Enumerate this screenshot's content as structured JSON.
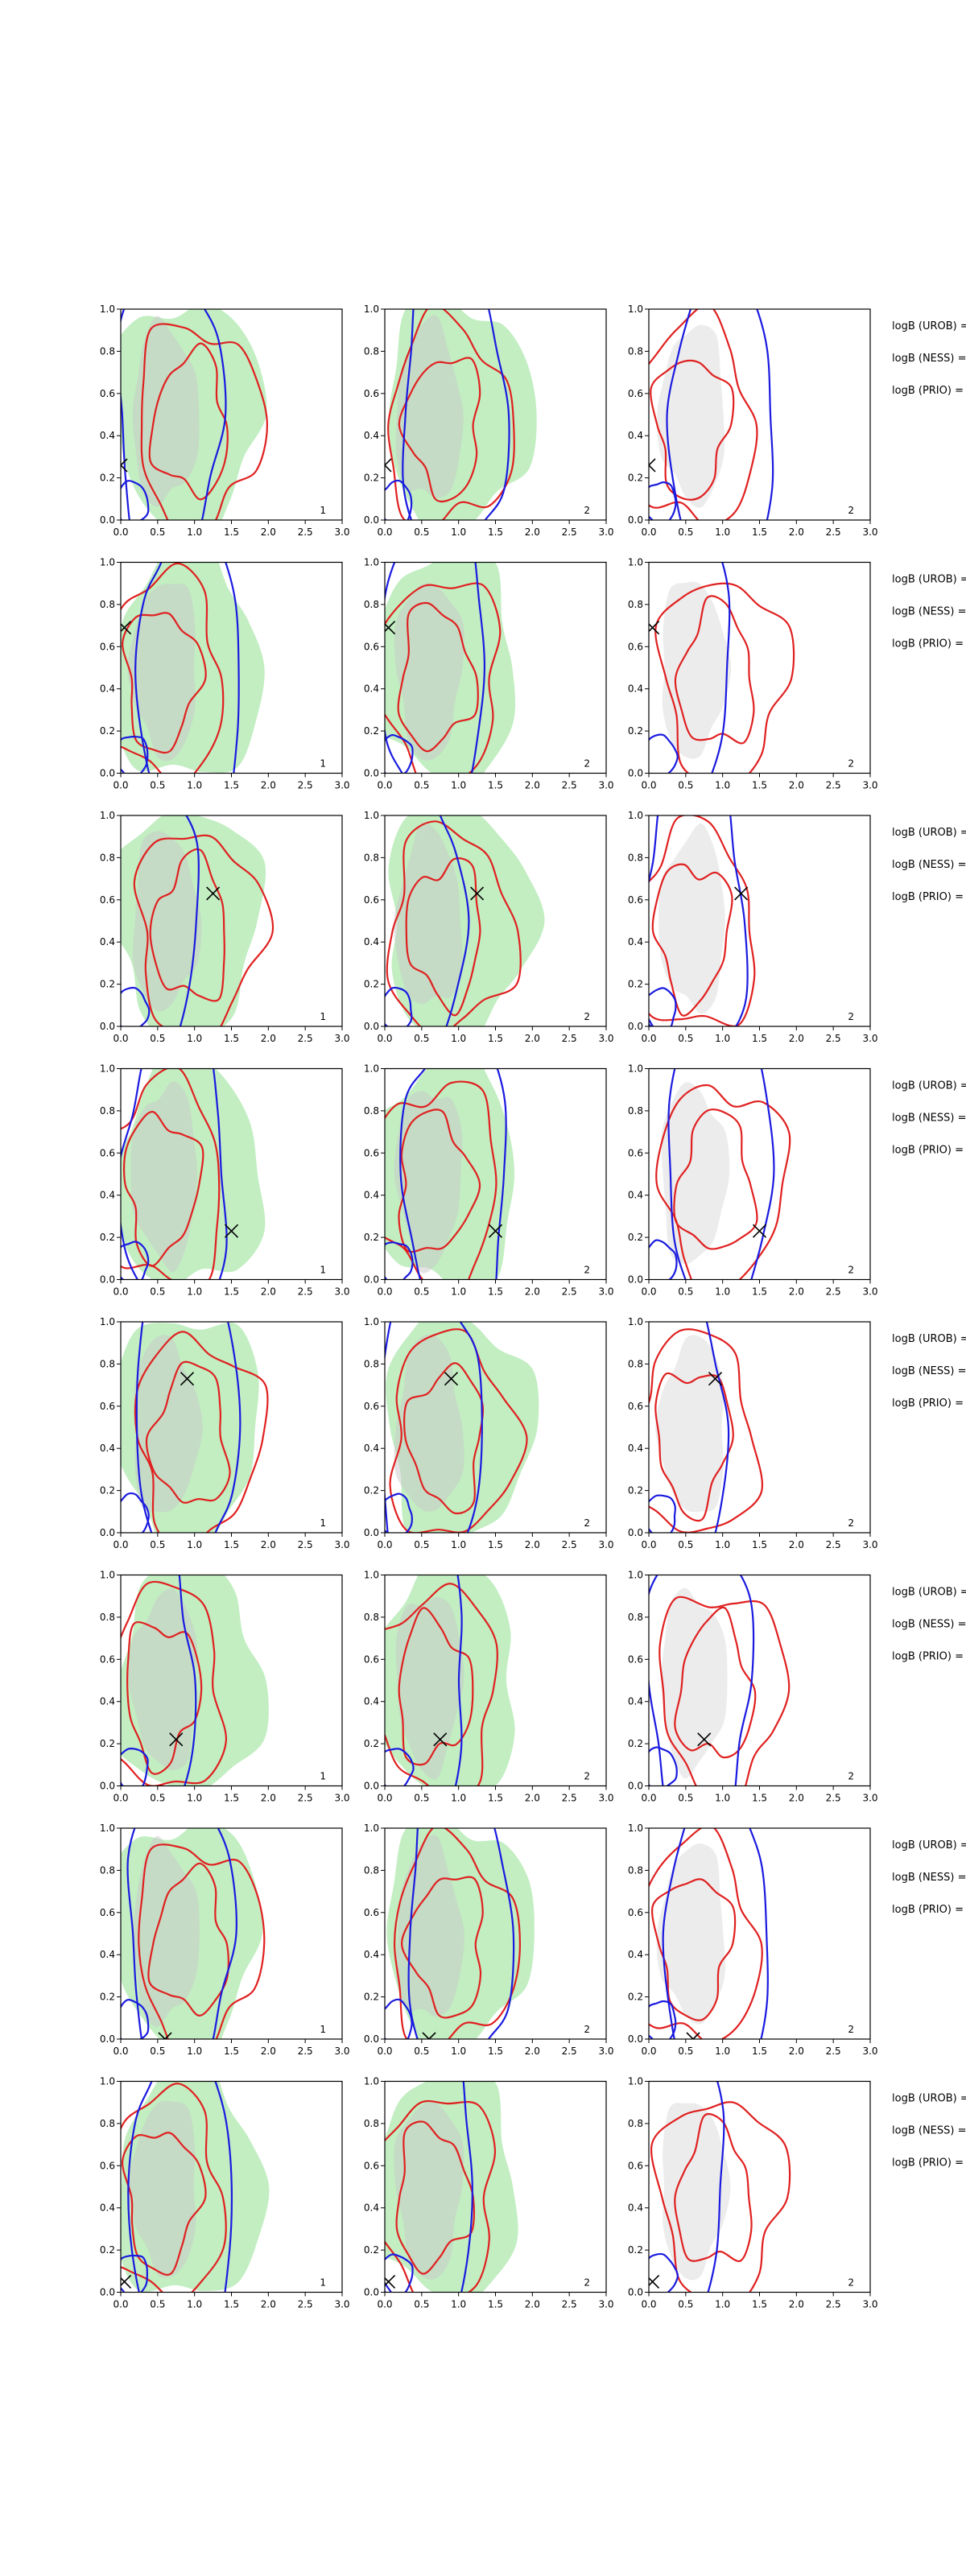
{
  "colors": {
    "green_fill": "#8fe08f",
    "grey_fill": "#c8c8c8",
    "red_line": "#e02020",
    "blue_line": "#1a1ae0",
    "marker": "#000000",
    "axis": "#000000"
  },
  "chart_data": {
    "type": "contour",
    "description_layout": "8 rows x 3 columns of 2D density contour panels",
    "x_ticks": [
      "0.0",
      "0.5",
      "1.0",
      "1.5",
      "2.0",
      "2.5",
      "3.0"
    ],
    "y_ticks": [
      "0.0",
      "0.2",
      "0.4",
      "0.6",
      "0.8",
      "1.0"
    ],
    "xlim": [
      0,
      3
    ],
    "ylim": [
      0,
      1
    ],
    "panel_labels": [
      "1",
      "2",
      "2"
    ],
    "row_labels": [
      "logB (UROB) =",
      "logB (NESS) =",
      "logB (PRIO) ="
    ],
    "rows": [
      {
        "marker": [
          0.0,
          0.26
        ]
      },
      {
        "marker": [
          0.05,
          0.69
        ]
      },
      {
        "marker": [
          1.25,
          0.63
        ]
      },
      {
        "marker": [
          1.5,
          0.23
        ]
      },
      {
        "marker": [
          0.9,
          0.73
        ]
      },
      {
        "marker": [
          0.75,
          0.22
        ]
      },
      {
        "marker": [
          0.6,
          0.0
        ]
      },
      {
        "marker": [
          0.05,
          0.05
        ]
      }
    ]
  }
}
